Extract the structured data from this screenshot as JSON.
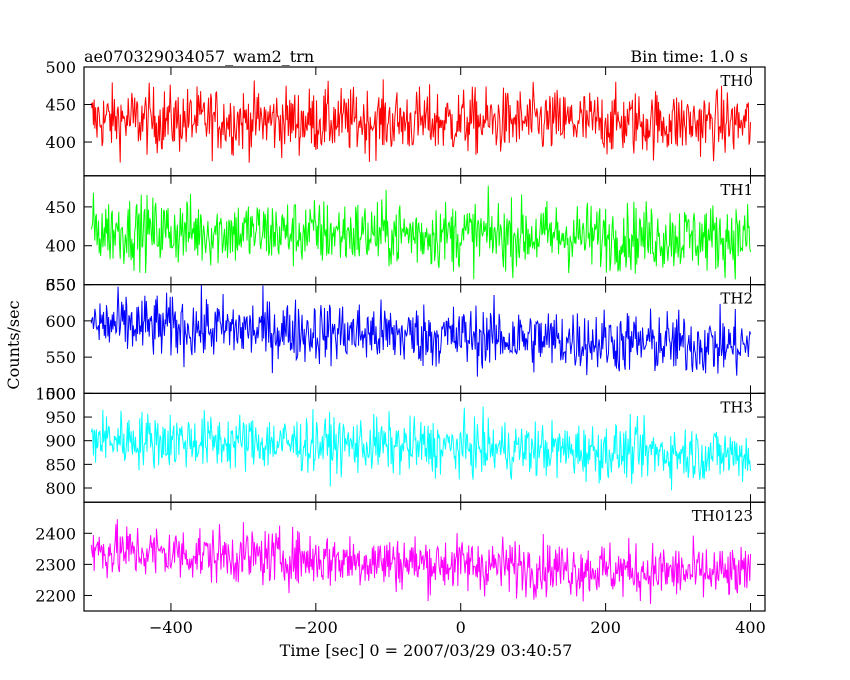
{
  "header": {
    "title": "ae070329034057_wam2_trn",
    "bin_time": "Bin time: 1.0 s"
  },
  "chart_data": {
    "type": "line",
    "x_start": -510,
    "x_end": 400,
    "x_step": 1,
    "xlim": [
      -520,
      420
    ],
    "xticks": [
      -400,
      -200,
      0,
      200,
      400
    ],
    "xlabel": "Time [sec] 0 = 2007/03/29 03:40:57",
    "ylabel": "Counts/sec",
    "panels": [
      {
        "label": "TH0",
        "color": "#ff0000",
        "ylim": [
          355,
          500
        ],
        "yticks": [
          400,
          450,
          500
        ],
        "mean_start": 430,
        "mean_end": 425,
        "noise": 22
      },
      {
        "label": "TH1",
        "color": "#00ff00",
        "ylim": [
          350,
          490
        ],
        "yticks": [
          350,
          400,
          450
        ],
        "mean_start": 420,
        "mean_end": 410,
        "noise": 22
      },
      {
        "label": "TH2",
        "color": "#0000ff",
        "ylim": [
          500,
          650
        ],
        "yticks": [
          500,
          550,
          600,
          650
        ],
        "mean_start": 595,
        "mean_end": 565,
        "noise": 22
      },
      {
        "label": "TH3",
        "color": "#00ffff",
        "ylim": [
          770,
          1000
        ],
        "yticks": [
          800,
          850,
          900,
          950,
          1000
        ],
        "mean_start": 905,
        "mean_end": 870,
        "noise": 30
      },
      {
        "label": "TH0123",
        "color": "#ff00ff",
        "ylim": [
          2150,
          2500
        ],
        "yticks": [
          2200,
          2300,
          2400
        ],
        "mean_start": 2345,
        "mean_end": 2265,
        "noise": 45
      }
    ]
  }
}
